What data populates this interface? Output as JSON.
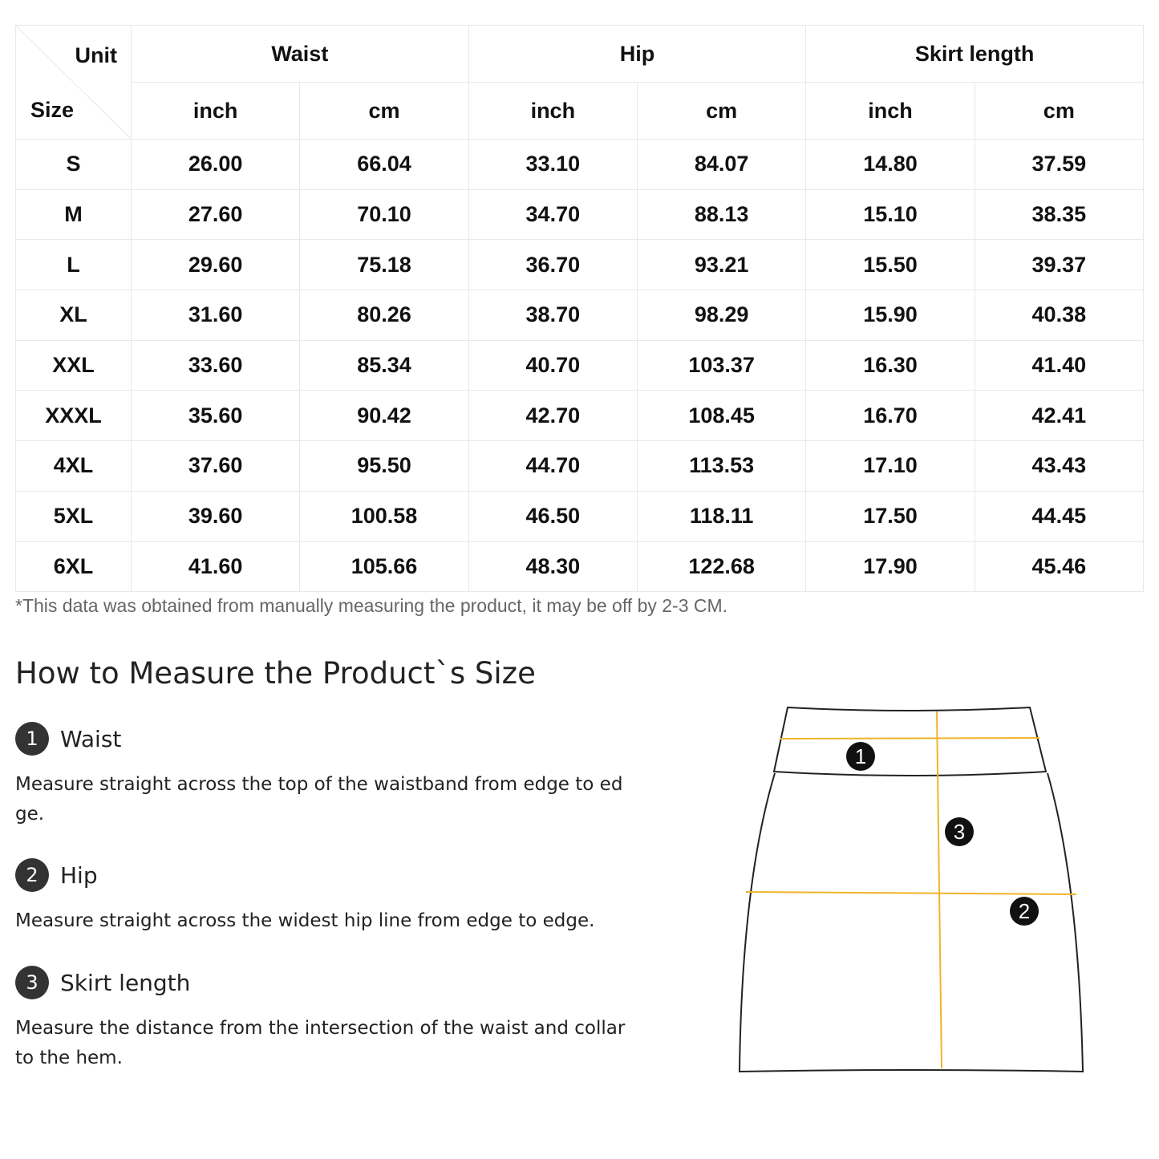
{
  "table": {
    "corner": {
      "unit": "Unit",
      "size": "Size"
    },
    "groups": [
      "Waist",
      "Hip",
      "Skirt length"
    ],
    "units": [
      "inch",
      "cm",
      "inch",
      "cm",
      "inch",
      "cm"
    ],
    "rows": [
      [
        "S",
        "26.00",
        "66.04",
        "33.10",
        "84.07",
        "14.80",
        "37.59"
      ],
      [
        "M",
        "27.60",
        "70.10",
        "34.70",
        "88.13",
        "15.10",
        "38.35"
      ],
      [
        "L",
        "29.60",
        "75.18",
        "36.70",
        "93.21",
        "15.50",
        "39.37"
      ],
      [
        "XL",
        "31.60",
        "80.26",
        "38.70",
        "98.29",
        "15.90",
        "40.38"
      ],
      [
        "XXL",
        "33.60",
        "85.34",
        "40.70",
        "103.37",
        "16.30",
        "41.40"
      ],
      [
        "XXXL",
        "35.60",
        "90.42",
        "42.70",
        "108.45",
        "16.70",
        "42.41"
      ],
      [
        "4XL",
        "37.60",
        "95.50",
        "44.70",
        "113.53",
        "17.10",
        "43.43"
      ],
      [
        "5XL",
        "39.60",
        "100.58",
        "46.50",
        "118.11",
        "17.50",
        "44.45"
      ],
      [
        "6XL",
        "41.60",
        "105.66",
        "48.30",
        "122.68",
        "17.90",
        "45.46"
      ]
    ]
  },
  "note": "*This data was obtained from manually measuring the product, it may be off by 2-3 CM.",
  "howto": {
    "title": "How to Measure the Product`s Size",
    "steps": [
      {
        "num": "1",
        "label": "Waist",
        "desc": "Measure straight across the top of the waistband from edge to edge."
      },
      {
        "num": "2",
        "label": "Hip",
        "desc": "Measure straight across the widest hip line from edge to edge."
      },
      {
        "num": "3",
        "label": "Skirt length",
        "desc": "Measure the distance from the intersection of the waist and collar to the hem."
      }
    ]
  },
  "diagram": {
    "markers": [
      "1",
      "2",
      "3"
    ],
    "line_color": "#f0b429",
    "outline_color": "#222222"
  }
}
